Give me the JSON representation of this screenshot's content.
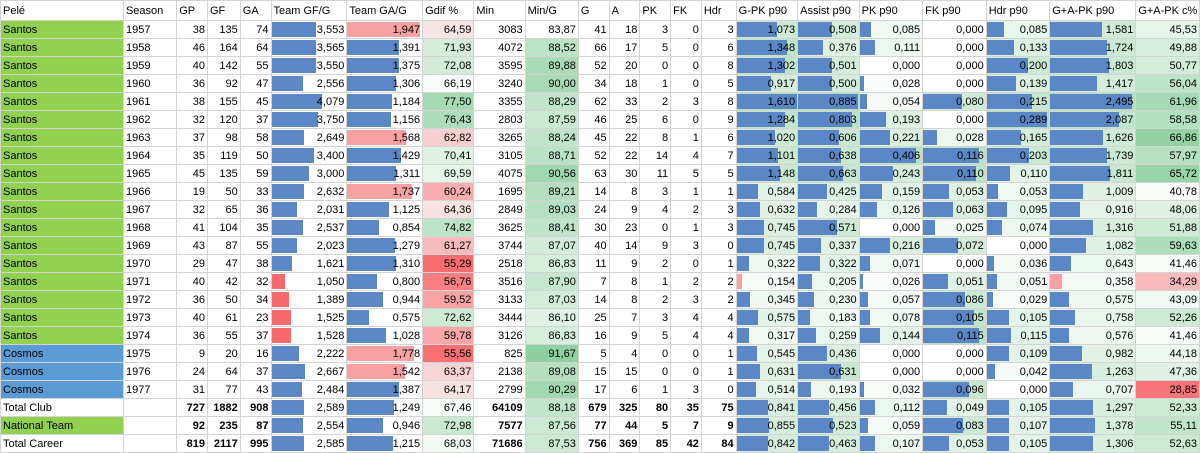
{
  "headers": [
    "Pelé",
    "Season",
    "GP",
    "GF",
    "GA",
    "Team GF/G",
    "Team GA/G",
    "Gdif %",
    "Min",
    "Min/G",
    "G",
    "A",
    "PK",
    "FK",
    "Hdr",
    "G-PK p90",
    "Assist p90",
    "PK p90",
    "FK p90",
    "Hdr p90",
    "G+A-PK p90",
    "G+A-PK c%"
  ],
  "colors": {
    "santos": "#92d050",
    "cosmos": "#5b9bd5",
    "bar_blue": "#5b87c6",
    "bar_red": "#f8696b",
    "bar_green": "#63be7b",
    "grid": "#d4d4d4"
  },
  "bar_columns": {
    "Team GF/G": {
      "color": "#5b87c6",
      "max": 4.1
    },
    "Team GA/G": {
      "color": "#5b87c6",
      "max": 1.96
    },
    "G-PK p90": {
      "color": "#5b87c6",
      "max": 1.62
    },
    "Assist p90": {
      "color": "#5b87c6",
      "max": 0.9
    },
    "PK p90": {
      "color": "#5b87c6",
      "max": 0.42
    },
    "FK p90": {
      "color": "#5b87c6",
      "max": 0.13
    },
    "Hdr p90": {
      "color": "#5b87c6",
      "max": 0.3
    },
    "G+A-PK p90": {
      "color": "#5b87c6",
      "max": 2.5
    }
  },
  "rows": [
    {
      "team": "Santos",
      "season": "1957",
      "gp": "38",
      "gf": "135",
      "ga": "74",
      "tgf": "3,553",
      "tga": "1,947",
      "gdif": "64,59",
      "min": "3083",
      "ming": "83,87",
      "g": "41",
      "a": "18",
      "pk": "3",
      "fk": "0",
      "hdr": "3",
      "gpk": "1,073",
      "ast": "0,508",
      "pkp": "0,085",
      "fkp": "0,000",
      "hdrp": "0,085",
      "gapk": "1,581",
      "gac": "45,53"
    },
    {
      "team": "Santos",
      "season": "1958",
      "gp": "46",
      "gf": "164",
      "ga": "64",
      "tgf": "3,565",
      "tga": "1,391",
      "gdif": "71,93",
      "min": "4072",
      "ming": "88,52",
      "g": "66",
      "a": "17",
      "pk": "5",
      "fk": "0",
      "hdr": "6",
      "gpk": "1,348",
      "ast": "0,376",
      "pkp": "0,111",
      "fkp": "0,000",
      "hdrp": "0,133",
      "gapk": "1,724",
      "gac": "49,88"
    },
    {
      "team": "Santos",
      "season": "1959",
      "gp": "40",
      "gf": "142",
      "ga": "55",
      "tgf": "3,550",
      "tga": "1,375",
      "gdif": "72,08",
      "min": "3595",
      "ming": "89,88",
      "g": "52",
      "a": "20",
      "pk": "0",
      "fk": "0",
      "hdr": "8",
      "gpk": "1,302",
      "ast": "0,501",
      "pkp": "0,000",
      "fkp": "0,000",
      "hdrp": "0,200",
      "gapk": "1,803",
      "gac": "50,77"
    },
    {
      "team": "Santos",
      "season": "1960",
      "gp": "36",
      "gf": "92",
      "ga": "47",
      "tgf": "2,556",
      "tga": "1,306",
      "gdif": "66,19",
      "min": "3240",
      "ming": "90,00",
      "g": "34",
      "a": "18",
      "pk": "1",
      "fk": "0",
      "hdr": "5",
      "gpk": "0,917",
      "ast": "0,500",
      "pkp": "0,028",
      "fkp": "0,000",
      "hdrp": "0,139",
      "gapk": "1,417",
      "gac": "56,04"
    },
    {
      "team": "Santos",
      "season": "1961",
      "gp": "38",
      "gf": "155",
      "ga": "45",
      "tgf": "4,079",
      "tga": "1,184",
      "gdif": "77,50",
      "min": "3355",
      "ming": "88,29",
      "g": "62",
      "a": "33",
      "pk": "2",
      "fk": "3",
      "hdr": "8",
      "gpk": "1,610",
      "ast": "0,885",
      "pkp": "0,054",
      "fkp": "0,080",
      "hdrp": "0,215",
      "gapk": "2,495",
      "gac": "61,96"
    },
    {
      "team": "Santos",
      "season": "1962",
      "gp": "32",
      "gf": "120",
      "ga": "37",
      "tgf": "3,750",
      "tga": "1,156",
      "gdif": "76,43",
      "min": "2803",
      "ming": "87,59",
      "g": "46",
      "a": "25",
      "pk": "6",
      "fk": "0",
      "hdr": "9",
      "gpk": "1,284",
      "ast": "0,803",
      "pkp": "0,193",
      "fkp": "0,000",
      "hdrp": "0,289",
      "gapk": "2,087",
      "gac": "58,58"
    },
    {
      "team": "Santos",
      "season": "1963",
      "gp": "37",
      "gf": "98",
      "ga": "58",
      "tgf": "2,649",
      "tga": "1,568",
      "gdif": "62,82",
      "min": "3265",
      "ming": "88,24",
      "g": "45",
      "a": "22",
      "pk": "8",
      "fk": "1",
      "hdr": "6",
      "gpk": "1,020",
      "ast": "0,606",
      "pkp": "0,221",
      "fkp": "0,028",
      "hdrp": "0,165",
      "gapk": "1,626",
      "gac": "66,86"
    },
    {
      "team": "Santos",
      "season": "1964",
      "gp": "35",
      "gf": "119",
      "ga": "50",
      "tgf": "3,400",
      "tga": "1,429",
      "gdif": "70,41",
      "min": "3105",
      "ming": "88,71",
      "g": "52",
      "a": "22",
      "pk": "14",
      "fk": "4",
      "hdr": "7",
      "gpk": "1,101",
      "ast": "0,638",
      "pkp": "0,406",
      "fkp": "0,116",
      "hdrp": "0,203",
      "gapk": "1,739",
      "gac": "57,97"
    },
    {
      "team": "Santos",
      "season": "1965",
      "gp": "45",
      "gf": "135",
      "ga": "59",
      "tgf": "3,000",
      "tga": "1,311",
      "gdif": "69,59",
      "min": "4075",
      "ming": "90,56",
      "g": "63",
      "a": "30",
      "pk": "11",
      "fk": "5",
      "hdr": "5",
      "gpk": "1,148",
      "ast": "0,663",
      "pkp": "0,243",
      "fkp": "0,110",
      "hdrp": "0,110",
      "gapk": "1,811",
      "gac": "65,72"
    },
    {
      "team": "Santos",
      "season": "1966",
      "gp": "19",
      "gf": "50",
      "ga": "33",
      "tgf": "2,632",
      "tga": "1,737",
      "gdif": "60,24",
      "min": "1695",
      "ming": "89,21",
      "g": "14",
      "a": "8",
      "pk": "3",
      "fk": "1",
      "hdr": "1",
      "gpk": "0,584",
      "ast": "0,425",
      "pkp": "0,159",
      "fkp": "0,053",
      "hdrp": "0,053",
      "gapk": "1,009",
      "gac": "40,78"
    },
    {
      "team": "Santos",
      "season": "1967",
      "gp": "32",
      "gf": "65",
      "ga": "36",
      "tgf": "2,031",
      "tga": "1,125",
      "gdif": "64,36",
      "min": "2849",
      "ming": "89,03",
      "g": "24",
      "a": "9",
      "pk": "4",
      "fk": "2",
      "hdr": "3",
      "gpk": "0,632",
      "ast": "0,284",
      "pkp": "0,126",
      "fkp": "0,063",
      "hdrp": "0,095",
      "gapk": "0,916",
      "gac": "48,06"
    },
    {
      "team": "Santos",
      "season": "1968",
      "gp": "41",
      "gf": "104",
      "ga": "35",
      "tgf": "2,537",
      "tga": "0,854",
      "gdif": "74,82",
      "min": "3625",
      "ming": "88,41",
      "g": "30",
      "a": "23",
      "pk": "0",
      "fk": "1",
      "hdr": "3",
      "gpk": "0,745",
      "ast": "0,571",
      "pkp": "0,000",
      "fkp": "0,025",
      "hdrp": "0,074",
      "gapk": "1,316",
      "gac": "51,88"
    },
    {
      "team": "Santos",
      "season": "1969",
      "gp": "43",
      "gf": "87",
      "ga": "55",
      "tgf": "2,023",
      "tga": "1,279",
      "gdif": "61,27",
      "min": "3744",
      "ming": "87,07",
      "g": "40",
      "a": "14",
      "pk": "9",
      "fk": "3",
      "hdr": "0",
      "gpk": "0,745",
      "ast": "0,337",
      "pkp": "0,216",
      "fkp": "0,072",
      "hdrp": "0,000",
      "gapk": "1,082",
      "gac": "59,63"
    },
    {
      "team": "Santos",
      "season": "1970",
      "gp": "29",
      "gf": "47",
      "ga": "38",
      "tgf": "1,621",
      "tga": "1,310",
      "gdif": "55,29",
      "min": "2518",
      "ming": "86,83",
      "g": "11",
      "a": "9",
      "pk": "2",
      "fk": "0",
      "hdr": "1",
      "gpk": "0,322",
      "ast": "0,322",
      "pkp": "0,071",
      "fkp": "0,000",
      "hdrp": "0,036",
      "gapk": "0,643",
      "gac": "41,46"
    },
    {
      "team": "Santos",
      "season": "1971",
      "gp": "40",
      "gf": "42",
      "ga": "32",
      "tgf": "1,050",
      "tga": "0,800",
      "gdif": "56,76",
      "min": "3516",
      "ming": "87,90",
      "g": "7",
      "a": "8",
      "pk": "1",
      "fk": "2",
      "hdr": "2",
      "gpk": "0,154",
      "ast": "0,205",
      "pkp": "0,026",
      "fkp": "0,051",
      "hdrp": "0,051",
      "gapk": "0,358",
      "gac": "34,29"
    },
    {
      "team": "Santos",
      "season": "1972",
      "gp": "36",
      "gf": "50",
      "ga": "34",
      "tgf": "1,389",
      "tga": "0,944",
      "gdif": "59,52",
      "min": "3133",
      "ming": "87,03",
      "g": "14",
      "a": "8",
      "pk": "2",
      "fk": "3",
      "hdr": "2",
      "gpk": "0,345",
      "ast": "0,230",
      "pkp": "0,057",
      "fkp": "0,086",
      "hdrp": "0,029",
      "gapk": "0,575",
      "gac": "43,09"
    },
    {
      "team": "Santos",
      "season": "1973",
      "gp": "40",
      "gf": "61",
      "ga": "23",
      "tgf": "1,525",
      "tga": "0,575",
      "gdif": "72,62",
      "min": "3444",
      "ming": "86,10",
      "g": "25",
      "a": "7",
      "pk": "3",
      "fk": "4",
      "hdr": "4",
      "gpk": "0,575",
      "ast": "0,183",
      "pkp": "0,078",
      "fkp": "0,105",
      "hdrp": "0,105",
      "gapk": "0,758",
      "gac": "52,26"
    },
    {
      "team": "Santos",
      "season": "1974",
      "gp": "36",
      "gf": "55",
      "ga": "37",
      "tgf": "1,528",
      "tga": "1,028",
      "gdif": "59,78",
      "min": "3126",
      "ming": "86,83",
      "g": "16",
      "a": "9",
      "pk": "5",
      "fk": "4",
      "hdr": "4",
      "gpk": "0,317",
      "ast": "0,259",
      "pkp": "0,144",
      "fkp": "0,115",
      "hdrp": "0,115",
      "gapk": "0,576",
      "gac": "41,46"
    },
    {
      "team": "Cosmos",
      "season": "1975",
      "gp": "9",
      "gf": "20",
      "ga": "16",
      "tgf": "2,222",
      "tga": "1,778",
      "gdif": "55,56",
      "min": "825",
      "ming": "91,67",
      "g": "5",
      "a": "4",
      "pk": "0",
      "fk": "0",
      "hdr": "1",
      "gpk": "0,545",
      "ast": "0,436",
      "pkp": "0,000",
      "fkp": "0,000",
      "hdrp": "0,109",
      "gapk": "0,982",
      "gac": "44,18"
    },
    {
      "team": "Cosmos",
      "season": "1976",
      "gp": "24",
      "gf": "64",
      "ga": "37",
      "tgf": "2,667",
      "tga": "1,542",
      "gdif": "63,37",
      "min": "2138",
      "ming": "89,08",
      "g": "15",
      "a": "15",
      "pk": "0",
      "fk": "0",
      "hdr": "1",
      "gpk": "0,631",
      "ast": "0,631",
      "pkp": "0,000",
      "fkp": "0,000",
      "hdrp": "0,042",
      "gapk": "1,263",
      "gac": "47,36"
    },
    {
      "team": "Cosmos",
      "season": "1977",
      "gp": "31",
      "gf": "77",
      "ga": "43",
      "tgf": "2,484",
      "tga": "1,387",
      "gdif": "64,17",
      "min": "2799",
      "ming": "90,29",
      "g": "17",
      "a": "6",
      "pk": "1",
      "fk": "3",
      "hdr": "0",
      "gpk": "0,514",
      "ast": "0,193",
      "pkp": "0,032",
      "fkp": "0,096",
      "hdrp": "0,000",
      "gapk": "0,707",
      "gac": "28,85"
    }
  ],
  "totals": [
    {
      "label": "Total Club",
      "gp": "727",
      "gf": "1882",
      "ga": "908",
      "tgf": "2,589",
      "tga": "1,249",
      "gdif": "67,46",
      "min": "64109",
      "ming": "88,18",
      "g": "679",
      "a": "325",
      "pk": "80",
      "fk": "35",
      "hdr": "75",
      "gpk": "0,841",
      "ast": "0,456",
      "pkp": "0,112",
      "fkp": "0,049",
      "hdrp": "0,105",
      "gapk": "1,297",
      "gac": "52,33"
    },
    {
      "label": "National Team",
      "gp": "92",
      "gf": "235",
      "ga": "87",
      "tgf": "2,554",
      "tga": "0,946",
      "gdif": "72,98",
      "min": "7577",
      "ming": "87,56",
      "g": "77",
      "a": "44",
      "pk": "5",
      "fk": "7",
      "hdr": "9",
      "gpk": "0,855",
      "ast": "0,523",
      "pkp": "0,059",
      "fkp": "0,083",
      "hdrp": "0,107",
      "gapk": "1,378",
      "gac": "55,11"
    },
    {
      "label": "Total Career",
      "gp": "819",
      "gf": "2117",
      "ga": "995",
      "tgf": "2,585",
      "tga": "1,215",
      "gdif": "68,03",
      "min": "71686",
      "ming": "87,53",
      "g": "756",
      "a": "369",
      "pk": "85",
      "fk": "42",
      "hdr": "84",
      "gpk": "0,842",
      "ast": "0,463",
      "pkp": "0,107",
      "fkp": "0,053",
      "hdrp": "0,105",
      "gapk": "1,306",
      "gac": "52,63"
    }
  ]
}
